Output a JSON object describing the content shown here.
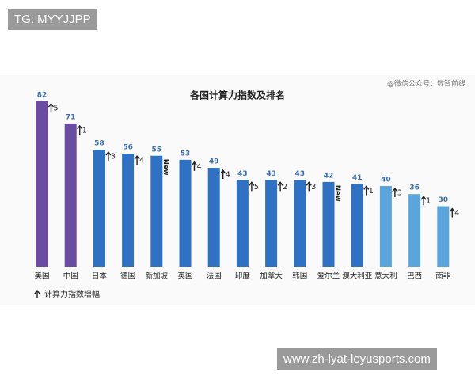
{
  "chart_data": {
    "type": "bar",
    "title": "各国计算力指数及排名",
    "categories": [
      "美国",
      "中国",
      "日本",
      "德国",
      "新加坡",
      "英国",
      "法国",
      "印度",
      "加拿大",
      "韩国",
      "爱尔兰",
      "澳大利亚",
      "意大利",
      "巴西",
      "南非"
    ],
    "values": [
      82,
      71,
      58,
      56,
      55,
      53,
      49,
      43,
      43,
      43,
      42,
      41,
      40,
      36,
      30
    ],
    "increase": [
      5,
      1,
      3,
      4,
      "New",
      4,
      4,
      5,
      2,
      3,
      "New",
      1,
      3,
      1,
      4
    ],
    "colors": [
      "#6a4ca3",
      "#6a4ca3",
      "#2f72c4",
      "#2f72c4",
      "#2f72c4",
      "#2f72c4",
      "#2f72c4",
      "#2f72c4",
      "#2f72c4",
      "#2f72c4",
      "#2f72c4",
      "#2f72c4",
      "#5aa6dc",
      "#5aa6dc",
      "#5aa6dc"
    ],
    "label_color": "#3a6fb0",
    "legend": "计算力指数增幅",
    "watermark": "@微信公众号：数智前线"
  },
  "overlays": {
    "top_left": "TG: MYYJJPP",
    "bottom_right": "www.zh-lyat-leyusports.com"
  }
}
